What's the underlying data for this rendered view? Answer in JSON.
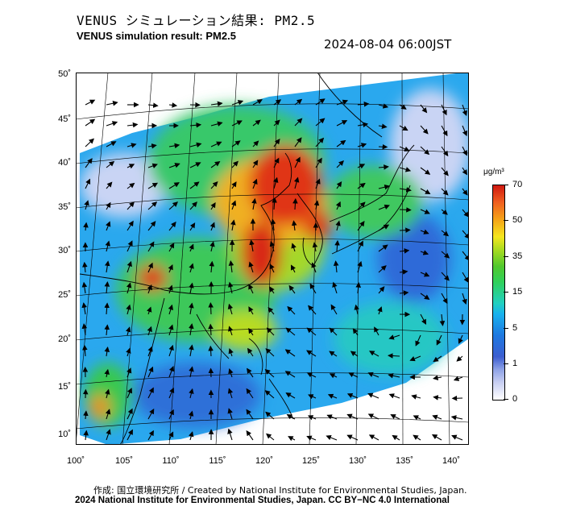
{
  "header": {
    "title_jp": "VENUS シミュレーション結果: PM2.5",
    "title_en": "VENUS simulation result: PM2.5",
    "timestamp": "2024-08-04 06:00JST"
  },
  "axes": {
    "latitude_labels": [
      "50˚",
      "45˚",
      "40˚",
      "35˚",
      "30˚",
      "25˚",
      "20˚",
      "15˚",
      "10˚"
    ],
    "longitude_labels": [
      "100˚",
      "105˚",
      "110˚",
      "115˚",
      "120˚",
      "125˚",
      "130˚",
      "135˚",
      "140˚"
    ]
  },
  "colorbar": {
    "unit": "μg/m³",
    "ticks": [
      "70",
      "50",
      "35",
      "15",
      "5",
      "1",
      "0"
    ]
  },
  "footer": {
    "credit_line": "作成: 国立環境研究所 / Created by National Institute for Environmental Studies, Japan.",
    "license_line": "2024 National Institute for Environmental Studies, Japan. CC BY−NC 4.0 International"
  },
  "colors": {
    "low": "#3c5ed0",
    "mid": "#30d05a",
    "high": "#d01810"
  }
}
